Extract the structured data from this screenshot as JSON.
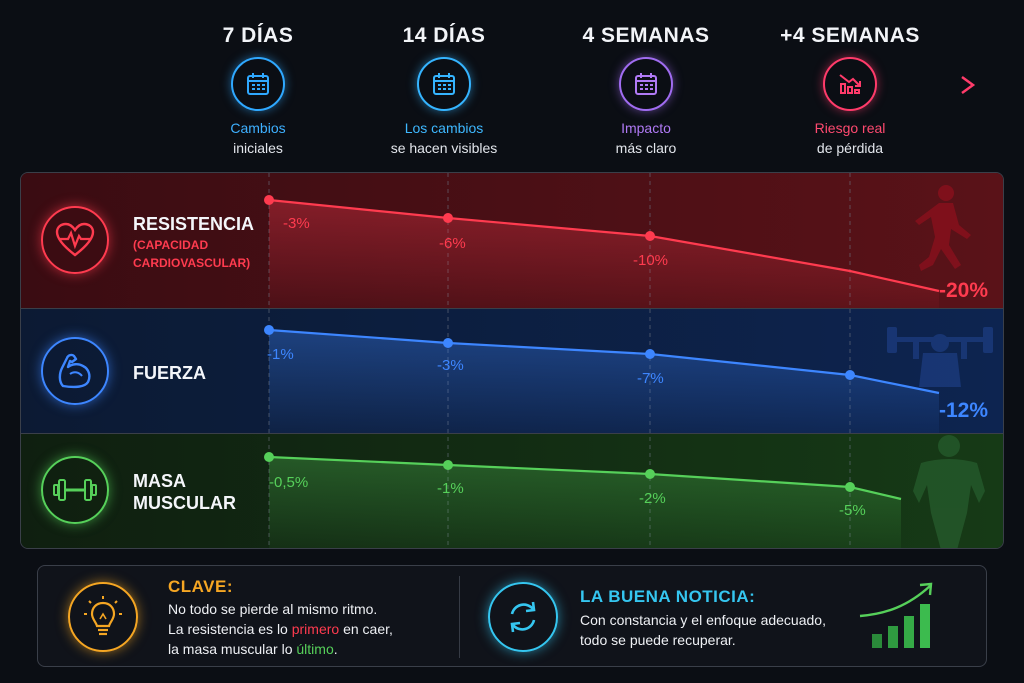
{
  "timeline": {
    "phases": [
      {
        "title": "7 DÍAS",
        "line1": "Cambios",
        "line2": "iniciales",
        "color": "#2fa8ff",
        "icon": "calendar-icon"
      },
      {
        "title": "14 DÍAS",
        "line1": "Los cambios",
        "line2": "se hacen visibles",
        "color": "#35b4ff",
        "icon": "calendar-icon"
      },
      {
        "title": "4 SEMANAS",
        "line1": "Impacto",
        "line2": "más claro",
        "color": "#a06cf0",
        "icon": "calendar-icon"
      },
      {
        "title": "+4 SEMANAS",
        "line1": "Riesgo real",
        "line2": "de pérdida",
        "color": "#ff3b6a",
        "icon": "chart-down-icon"
      }
    ]
  },
  "rows": [
    {
      "label_lines": [
        "RESISTENCIA"
      ],
      "sub_lines": [
        "(CAPACIDAD",
        "CARDIOVASCULAR)"
      ],
      "color": "#ff3b4f",
      "icon": "heart-pulse-icon",
      "illustration": "runner-silhouette",
      "values": [
        "-3%",
        "-6%",
        "-10%",
        "-20%"
      ]
    },
    {
      "label_lines": [
        "FUERZA"
      ],
      "sub_lines": [],
      "color": "#3d86ff",
      "icon": "flexed-arm-icon",
      "illustration": "weightlifter-silhouette",
      "values": [
        "-1%",
        "-3%",
        "-7%",
        "-12%"
      ]
    },
    {
      "label_lines": [
        "MASA",
        "MUSCULAR"
      ],
      "sub_lines": [],
      "color": "#56d05a",
      "icon": "dumbbell-icon",
      "illustration": "bodybuilder-silhouette",
      "values": [
        "-0,5%",
        "-1%",
        "-2%",
        "-5%"
      ]
    }
  ],
  "key_box": {
    "title": "CLAVE:",
    "line1": "No todo se pierde al mismo ritmo.",
    "line2_pre": "La resistencia es lo ",
    "line2_highlight": "primero",
    "line2_post": " en caer,",
    "line3_pre": "la masa muscular lo ",
    "line3_highlight": "último",
    "line3_post": ".",
    "color": "#f5a623",
    "icon": "lightbulb-icon"
  },
  "good_news": {
    "title": "LA BUENA NOTICIA:",
    "line1": "Con constancia y el enfoque adecuado,",
    "line2": "todo se puede recuperar.",
    "color": "#35c6f0",
    "icon": "refresh-icon",
    "illustration": "growth-bars-icon"
  }
}
